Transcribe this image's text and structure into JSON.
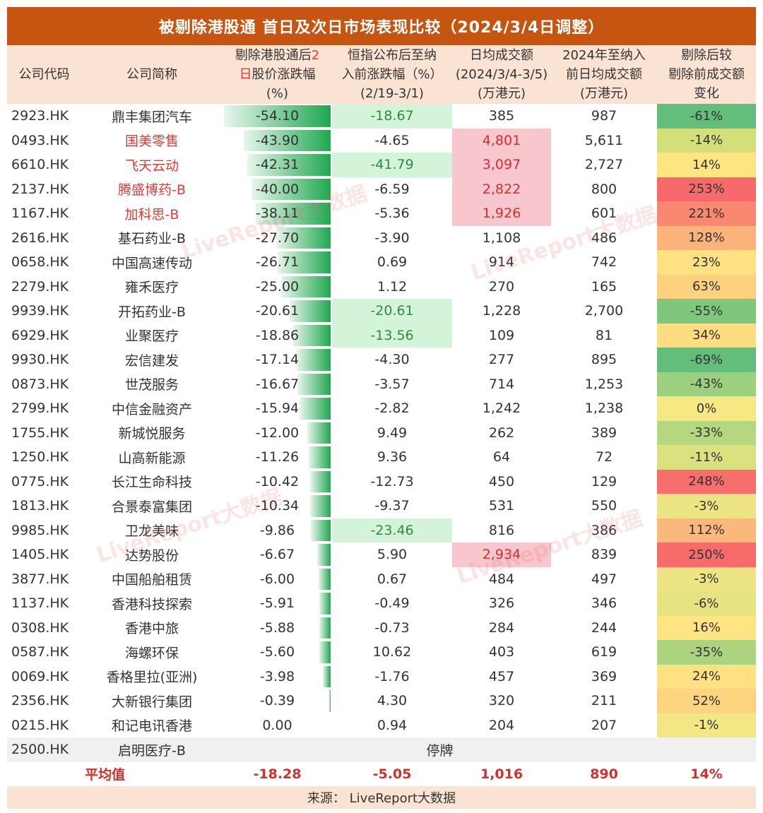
{
  "title": "被剔除港股通 首日及次日市场表现比较（2024/3/4日调整）",
  "headers": {
    "code": "公司代码",
    "name": "公司简称",
    "chg2d_pre": "剔除港股通后",
    "chg2d_red1": "2",
    "chg2d_red2": "日",
    "chg2d_post": "股价涨跌幅\n(%)",
    "hsi": "恒指公布后至纳\n入前涨跌幅（%）\n(2/19-3/1)",
    "avg_turnover": "日均成交额\n(2024/3/4-3/5)\n(万港元)",
    "prev_turnover": "2024年至纳入\n前日均成交额\n(万港元)",
    "change": "剔除后较\n剔除前成交额\n变化"
  },
  "rows": [
    {
      "code": "2923.HK",
      "name": "鼎丰集团汽车",
      "red": false,
      "chg": "-54.10",
      "chg_val": -54.1,
      "hsi": "-18.67",
      "hsi_hl": true,
      "t1": "385",
      "t1_hl": false,
      "t2": "987",
      "change": "-61%",
      "change_color": "#63be7b"
    },
    {
      "code": "0493.HK",
      "name": "国美零售",
      "red": true,
      "chg": "-43.90",
      "chg_val": -43.9,
      "hsi": "-4.65",
      "hsi_hl": false,
      "t1": "4,801",
      "t1_hl": true,
      "t2": "5,611",
      "change": "-14%",
      "change_color": "#d4df7b"
    },
    {
      "code": "6610.HK",
      "name": "飞天云动",
      "red": true,
      "chg": "-42.31",
      "chg_val": -42.31,
      "hsi": "-41.79",
      "hsi_hl": true,
      "t1": "3,097",
      "t1_hl": true,
      "t2": "2,727",
      "change": "14%",
      "change_color": "#fde582"
    },
    {
      "code": "2137.HK",
      "name": "腾盛博药-B",
      "red": true,
      "chg": "-40.00",
      "chg_val": -40.0,
      "hsi": "-6.59",
      "hsi_hl": false,
      "t1": "2,822",
      "t1_hl": true,
      "t2": "800",
      "change": "253%",
      "change_color": "#f8696b"
    },
    {
      "code": "1167.HK",
      "name": "加科思-B",
      "red": true,
      "chg": "-38.11",
      "chg_val": -38.11,
      "hsi": "-5.36",
      "hsi_hl": false,
      "t1": "1,926",
      "t1_hl": true,
      "t2": "601",
      "change": "221%",
      "change_color": "#f98870"
    },
    {
      "code": "2616.HK",
      "name": "基石药业-B",
      "red": false,
      "chg": "-27.70",
      "chg_val": -27.7,
      "hsi": "-3.90",
      "hsi_hl": false,
      "t1": "1,108",
      "t1_hl": false,
      "t2": "486",
      "change": "128%",
      "change_color": "#fbb27b"
    },
    {
      "code": "0658.HK",
      "name": "中国高速传动",
      "red": false,
      "chg": "-26.71",
      "chg_val": -26.71,
      "hsi": "0.69",
      "hsi_hl": false,
      "t1": "914",
      "t1_hl": false,
      "t2": "742",
      "change": "23%",
      "change_color": "#fee182"
    },
    {
      "code": "2279.HK",
      "name": "雍禾医疗",
      "red": false,
      "chg": "-25.00",
      "chg_val": -25.0,
      "hsi": "1.12",
      "hsi_hl": false,
      "t1": "270",
      "t1_hl": false,
      "t2": "165",
      "change": "63%",
      "change_color": "#fdd17f"
    },
    {
      "code": "9939.HK",
      "name": "开拓药业-B",
      "red": false,
      "chg": "-20.61",
      "chg_val": -20.61,
      "hsi": "-20.61",
      "hsi_hl": true,
      "t1": "1,228",
      "t1_hl": false,
      "t2": "2,700",
      "change": "-55%",
      "change_color": "#7fc77d"
    },
    {
      "code": "6929.HK",
      "name": "业聚医疗",
      "red": false,
      "chg": "-18.86",
      "chg_val": -18.86,
      "hsi": "-13.56",
      "hsi_hl": true,
      "t1": "109",
      "t1_hl": false,
      "t2": "81",
      "change": "34%",
      "change_color": "#fedc81"
    },
    {
      "code": "9930.HK",
      "name": "宏信建发",
      "red": false,
      "chg": "-17.14",
      "chg_val": -17.14,
      "hsi": "-4.30",
      "hsi_hl": false,
      "t1": "277",
      "t1_hl": false,
      "t2": "895",
      "change": "-69%",
      "change_color": "#63be7b"
    },
    {
      "code": "0873.HK",
      "name": "世茂服务",
      "red": false,
      "chg": "-16.67",
      "chg_val": -16.67,
      "hsi": "-3.57",
      "hsi_hl": false,
      "t1": "714",
      "t1_hl": false,
      "t2": "1,253",
      "change": "-43%",
      "change_color": "#9ccf7e"
    },
    {
      "code": "2799.HK",
      "name": "中信金融资产",
      "red": false,
      "chg": "-15.94",
      "chg_val": -15.94,
      "hsi": "-2.82",
      "hsi_hl": false,
      "t1": "1,242",
      "t1_hl": false,
      "t2": "1,238",
      "change": "0%",
      "change_color": "#f6e883"
    },
    {
      "code": "1755.HK",
      "name": "新城悦服务",
      "red": false,
      "chg": "-12.00",
      "chg_val": -12.0,
      "hsi": "9.49",
      "hsi_hl": false,
      "t1": "262",
      "t1_hl": false,
      "t2": "389",
      "change": "-33%",
      "change_color": "#b4d77f"
    },
    {
      "code": "1250.HK",
      "name": "山高新能源",
      "red": false,
      "chg": "-11.26",
      "chg_val": -11.26,
      "hsi": "9.36",
      "hsi_hl": false,
      "t1": "64",
      "t1_hl": false,
      "t2": "72",
      "change": "-11%",
      "change_color": "#dce17f"
    },
    {
      "code": "0775.HK",
      "name": "长江生命科技",
      "red": false,
      "chg": "-10.42",
      "chg_val": -10.42,
      "hsi": "-12.73",
      "hsi_hl": false,
      "t1": "450",
      "t1_hl": false,
      "t2": "129",
      "change": "248%",
      "change_color": "#f86e6c"
    },
    {
      "code": "1813.HK",
      "name": "合景泰富集团",
      "red": false,
      "chg": "-10.34",
      "chg_val": -10.34,
      "hsi": "-9.37",
      "hsi_hl": false,
      "t1": "531",
      "t1_hl": false,
      "t2": "550",
      "change": "-3%",
      "change_color": "#ede584"
    },
    {
      "code": "9985.HK",
      "name": "卫龙美味",
      "red": false,
      "chg": "-9.86",
      "chg_val": -9.86,
      "hsi": "-23.46",
      "hsi_hl": true,
      "t1": "816",
      "t1_hl": false,
      "t2": "386",
      "change": "112%",
      "change_color": "#fbb87c"
    },
    {
      "code": "1405.HK",
      "name": "达势股份",
      "red": false,
      "chg": "-6.67",
      "chg_val": -6.67,
      "hsi": "5.90",
      "hsi_hl": false,
      "t1": "2,934",
      "t1_hl": true,
      "t2": "839",
      "change": "250%",
      "change_color": "#f86b6b"
    },
    {
      "code": "3877.HK",
      "name": "中国船舶租赁",
      "red": false,
      "chg": "-6.00",
      "chg_val": -6.0,
      "hsi": "0.67",
      "hsi_hl": false,
      "t1": "484",
      "t1_hl": false,
      "t2": "497",
      "change": "-3%",
      "change_color": "#ede584"
    },
    {
      "code": "1137.HK",
      "name": "香港科技探索",
      "red": false,
      "chg": "-5.91",
      "chg_val": -5.91,
      "hsi": "-0.49",
      "hsi_hl": false,
      "t1": "326",
      "t1_hl": false,
      "t2": "346",
      "change": "-6%",
      "change_color": "#e6e383"
    },
    {
      "code": "0308.HK",
      "name": "香港中旅",
      "red": false,
      "chg": "-5.88",
      "chg_val": -5.88,
      "hsi": "-0.73",
      "hsi_hl": false,
      "t1": "284",
      "t1_hl": false,
      "t2": "244",
      "change": "16%",
      "change_color": "#fee483"
    },
    {
      "code": "0587.HK",
      "name": "海螺环保",
      "red": false,
      "chg": "-5.60",
      "chg_val": -5.6,
      "hsi": "10.62",
      "hsi_hl": false,
      "t1": "403",
      "t1_hl": false,
      "t2": "619",
      "change": "-35%",
      "change_color": "#acd47f"
    },
    {
      "code": "0069.HK",
      "name": "香格里拉(亚洲)",
      "red": false,
      "chg": "-3.98",
      "chg_val": -3.98,
      "hsi": "-1.76",
      "hsi_hl": false,
      "t1": "457",
      "t1_hl": false,
      "t2": "369",
      "change": "24%",
      "change_color": "#fee182"
    },
    {
      "code": "2356.HK",
      "name": "大新银行集团",
      "red": false,
      "chg": "-0.39",
      "chg_val": -0.39,
      "hsi": "4.30",
      "hsi_hl": false,
      "t1": "320",
      "t1_hl": false,
      "t2": "211",
      "change": "52%",
      "change_color": "#fdd47f"
    },
    {
      "code": "0215.HK",
      "name": "和记电讯香港",
      "red": false,
      "chg": "0.00",
      "chg_val": 0.0,
      "hsi": "0.94",
      "hsi_hl": false,
      "t1": "204",
      "t1_hl": false,
      "t2": "207",
      "change": "-1%",
      "change_color": "#f1e784"
    }
  ],
  "suspended": {
    "code": "2500.HK",
    "name": "启明医疗-B",
    "text": "停牌"
  },
  "average": {
    "label": "平均值",
    "chg": "-18.28",
    "hsi": "-5.05",
    "t1": "1,016",
    "t2": "890",
    "change": "14%"
  },
  "source": "来源：  LiveReport大数据",
  "watermark": "LiveReport大数据",
  "colors": {
    "title_bg": "#c65511",
    "header_bg": "#fbe3d3",
    "bar_green": "#1fa84f",
    "highlight_green": "#d4f4da",
    "highlight_red": "#f8c6cd",
    "red_text": "#e53935"
  }
}
